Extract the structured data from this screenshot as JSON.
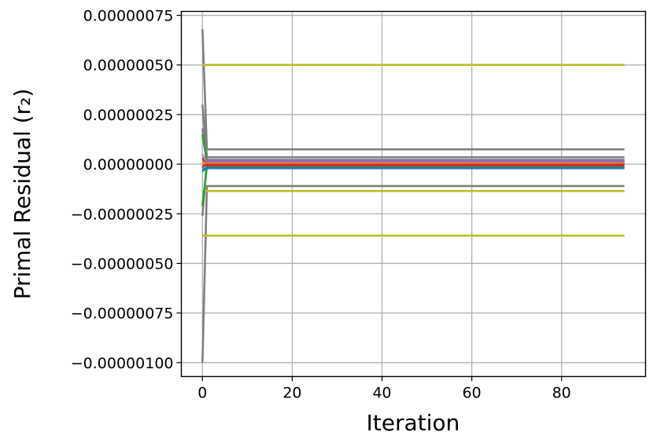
{
  "chart_data": {
    "type": "line",
    "xlabel": "Iteration",
    "ylabel": "Primal Residual (r₂)",
    "xlim": [
      -4.7,
      98.7
    ],
    "ylim": [
      -1.07e-06,
      7.7e-07
    ],
    "grid": true,
    "legend": "none",
    "x_ticks": [
      0,
      20,
      40,
      60,
      80
    ],
    "x_tick_labels": [
      "0",
      "20",
      "40",
      "60",
      "80"
    ],
    "y_ticks": [
      7.5e-07,
      5e-07,
      2.5e-07,
      0.0,
      -2.5e-07,
      -5e-07,
      -7.5e-07,
      -1e-06
    ],
    "y_tick_labels": [
      "0.00000075",
      "0.00000050",
      "0.00000025",
      "0.00000000",
      "−0.00000025",
      "−0.00000050",
      "−0.00000075",
      "−0.00000100"
    ],
    "series": [
      {
        "color": "#7f7f7f",
        "x": [
          0,
          1,
          94
        ],
        "y": [
          6.8e-07,
          7.5e-08,
          7.5e-08
        ]
      },
      {
        "color": "#7f7f7f",
        "x": [
          0,
          1,
          94
        ],
        "y": [
          -1e-06,
          -1.1e-07,
          -1.1e-07
        ]
      },
      {
        "color": "#7f7f7f",
        "x": [
          0,
          1,
          94
        ],
        "y": [
          3e-07,
          3.5e-08,
          3.5e-08
        ]
      },
      {
        "color": "#7f7f7f",
        "x": [
          0,
          1,
          94
        ],
        "y": [
          -2.6e-07,
          2.2e-08,
          2.2e-08
        ]
      },
      {
        "color": "#7f7f7f",
        "x": [
          0,
          1,
          94
        ],
        "y": [
          1.8e-07,
          1e-08,
          1e-08
        ]
      },
      {
        "color": "#bcbd22",
        "x": [
          0,
          1,
          94
        ],
        "y": [
          5e-07,
          5e-07,
          5e-07
        ]
      },
      {
        "color": "#bcbd22",
        "x": [
          0,
          1,
          94
        ],
        "y": [
          -3.6e-07,
          -3.6e-07,
          -3.6e-07
        ]
      },
      {
        "color": "#bcbd22",
        "x": [
          0,
          1,
          94
        ],
        "y": [
          -1.35e-07,
          -1.35e-07,
          -1.35e-07
        ]
      },
      {
        "color": "#2ca02c",
        "x": [
          0,
          1,
          94
        ],
        "y": [
          1.5e-07,
          1.2e-08,
          1.2e-08
        ]
      },
      {
        "color": "#2ca02c",
        "x": [
          0,
          1,
          94
        ],
        "y": [
          -2.1e-07,
          -1.2e-08,
          -1.2e-08
        ]
      },
      {
        "color": "#17becf",
        "x": [
          0,
          1,
          94
        ],
        "y": [
          -4e-08,
          -5e-09,
          -5e-09
        ]
      },
      {
        "color": "#e377c2",
        "x": [
          0,
          1,
          94
        ],
        "y": [
          5e-08,
          5e-09,
          5e-09
        ]
      },
      {
        "color": "#9467bd",
        "x": [
          0,
          1,
          94
        ],
        "y": [
          -2e-08,
          1.7e-08,
          1.7e-08
        ]
      },
      {
        "color": "#8c564b",
        "x": [
          0,
          1,
          94
        ],
        "y": [
          3e-08,
          -8e-09,
          -8e-09
        ]
      },
      {
        "color": "#1f77b4",
        "x": [
          0,
          1,
          94
        ],
        "y": [
          -3e-08,
          -2e-08,
          -2e-08
        ]
      },
      {
        "color": "#ff7f0e",
        "x": [
          0,
          1,
          94
        ],
        "y": [
          1e-08,
          2e-09,
          2e-09
        ]
      },
      {
        "color": "#d62728",
        "x": [
          0,
          1,
          94
        ],
        "y": [
          -1e-08,
          -3e-09,
          -3e-09
        ]
      }
    ]
  }
}
